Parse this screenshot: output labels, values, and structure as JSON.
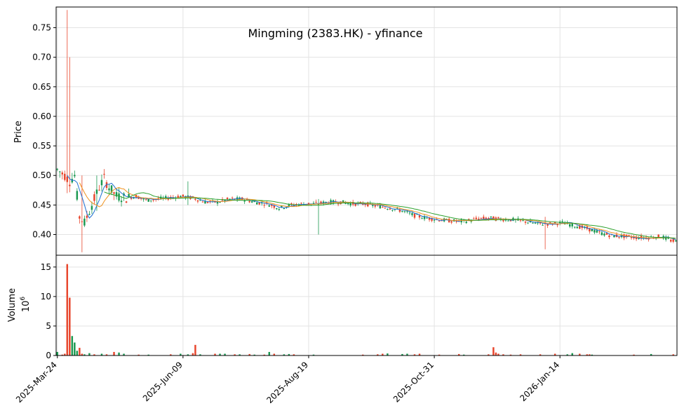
{
  "chart_data": {
    "type": "candlestick",
    "title": "Mingming (2383.HK) - yfinance",
    "price_panel": {
      "ylabel": "Price",
      "ylim": [
        0.365,
        0.785
      ],
      "yticks": [
        0.4,
        0.45,
        0.5,
        0.55,
        0.6,
        0.65,
        0.7,
        0.75
      ],
      "ytick_labels": [
        "0.40",
        "0.45",
        "0.50",
        "0.55",
        "0.60",
        "0.65",
        "0.70",
        "0.75"
      ]
    },
    "volume_panel": {
      "ylabel": "Volume",
      "exponent_label": "10",
      "exponent": "6",
      "ylim": [
        0,
        17
      ],
      "yticks": [
        0,
        5,
        10,
        15
      ],
      "ytick_labels": [
        "0",
        "5",
        "10",
        "15"
      ]
    },
    "x_ticks": [
      {
        "label": "2025-Mar-24",
        "index": 0
      },
      {
        "label": "2025-Jun-09",
        "index": 51
      },
      {
        "label": "2025-Aug-19",
        "index": 102
      },
      {
        "label": "2025-Oct-31",
        "index": 153
      },
      {
        "label": "2026-Jan-14",
        "index": 204
      }
    ],
    "n_sessions": 252,
    "colors": {
      "up": "#1a9850",
      "down": "#e8452c",
      "ma_short": "#1f6fd1",
      "ma_mid": "#f0921e",
      "ma_long": "#2ca02c"
    },
    "grid": true,
    "moving_averages": [
      "ma_short",
      "ma_mid",
      "ma_long"
    ],
    "price_anchors": [
      [
        0,
        0.51
      ],
      [
        3,
        0.5
      ],
      [
        5,
        0.49
      ],
      [
        7,
        0.5
      ],
      [
        9,
        0.43
      ],
      [
        11,
        0.42
      ],
      [
        13,
        0.44
      ],
      [
        15,
        0.46
      ],
      [
        17,
        0.48
      ],
      [
        19,
        0.495
      ],
      [
        21,
        0.48
      ],
      [
        24,
        0.465
      ],
      [
        28,
        0.462
      ],
      [
        32,
        0.465
      ],
      [
        36,
        0.458
      ],
      [
        40,
        0.46
      ],
      [
        45,
        0.462
      ],
      [
        50,
        0.465
      ],
      [
        55,
        0.462
      ],
      [
        60,
        0.455
      ],
      [
        65,
        0.455
      ],
      [
        70,
        0.46
      ],
      [
        75,
        0.46
      ],
      [
        80,
        0.455
      ],
      [
        85,
        0.452
      ],
      [
        90,
        0.445
      ],
      [
        95,
        0.45
      ],
      [
        100,
        0.452
      ],
      [
        105,
        0.452
      ],
      [
        110,
        0.455
      ],
      [
        115,
        0.455
      ],
      [
        120,
        0.452
      ],
      [
        125,
        0.452
      ],
      [
        130,
        0.448
      ],
      [
        135,
        0.445
      ],
      [
        140,
        0.44
      ],
      [
        145,
        0.432
      ],
      [
        150,
        0.428
      ],
      [
        155,
        0.425
      ],
      [
        160,
        0.423
      ],
      [
        165,
        0.422
      ],
      [
        170,
        0.426
      ],
      [
        175,
        0.428
      ],
      [
        180,
        0.426
      ],
      [
        185,
        0.425
      ],
      [
        190,
        0.422
      ],
      [
        195,
        0.418
      ],
      [
        200,
        0.418
      ],
      [
        205,
        0.42
      ],
      [
        210,
        0.415
      ],
      [
        215,
        0.41
      ],
      [
        220,
        0.403
      ],
      [
        225,
        0.398
      ],
      [
        230,
        0.397
      ],
      [
        235,
        0.395
      ],
      [
        240,
        0.395
      ],
      [
        245,
        0.397
      ],
      [
        249,
        0.39
      ],
      [
        251,
        0.388
      ]
    ],
    "price_spikes": [
      [
        4,
        0.78,
        0.47
      ],
      [
        5,
        0.7,
        0.48
      ],
      [
        10,
        0.5,
        0.37
      ],
      [
        16,
        0.5,
        0.44
      ],
      [
        53,
        0.49,
        0.45
      ],
      [
        106,
        0.46,
        0.4
      ],
      [
        198,
        0.43,
        0.375
      ]
    ],
    "volume_values": [
      [
        0,
        0.6
      ],
      [
        2,
        0.15
      ],
      [
        3,
        0.3
      ],
      [
        4,
        15.5
      ],
      [
        5,
        9.8
      ],
      [
        6,
        3.3
      ],
      [
        7,
        2.2
      ],
      [
        8,
        0.8
      ],
      [
        9,
        1.3
      ],
      [
        10,
        0.3
      ],
      [
        11,
        0.2
      ],
      [
        13,
        0.4
      ],
      [
        15,
        0.2
      ],
      [
        18,
        0.3
      ],
      [
        20,
        0.2
      ],
      [
        23,
        0.6
      ],
      [
        25,
        0.5
      ],
      [
        27,
        0.3
      ],
      [
        33,
        0.15
      ],
      [
        37,
        0.15
      ],
      [
        46,
        0.2
      ],
      [
        50,
        0.3
      ],
      [
        53,
        0.2
      ],
      [
        55,
        0.4
      ],
      [
        56,
        1.8
      ],
      [
        58,
        0.2
      ],
      [
        64,
        0.3
      ],
      [
        66,
        0.3
      ],
      [
        68,
        0.3
      ],
      [
        72,
        0.2
      ],
      [
        74,
        0.2
      ],
      [
        78,
        0.25
      ],
      [
        80,
        0.15
      ],
      [
        84,
        0.15
      ],
      [
        86,
        0.6
      ],
      [
        88,
        0.3
      ],
      [
        92,
        0.2
      ],
      [
        94,
        0.25
      ],
      [
        96,
        0.2
      ],
      [
        104,
        0.15
      ],
      [
        124,
        0.15
      ],
      [
        130,
        0.2
      ],
      [
        132,
        0.3
      ],
      [
        134,
        0.35
      ],
      [
        140,
        0.25
      ],
      [
        142,
        0.3
      ],
      [
        145,
        0.2
      ],
      [
        147,
        0.3
      ],
      [
        155,
        0.15
      ],
      [
        163,
        0.25
      ],
      [
        165,
        0.15
      ],
      [
        175,
        0.2
      ],
      [
        177,
        1.4
      ],
      [
        178,
        0.5
      ],
      [
        179,
        0.3
      ],
      [
        181,
        0.2
      ],
      [
        184,
        0.15
      ],
      [
        188,
        0.2
      ],
      [
        196,
        0.2
      ],
      [
        202,
        0.3
      ],
      [
        207,
        0.2
      ],
      [
        209,
        0.4
      ],
      [
        212,
        0.3
      ],
      [
        215,
        0.2
      ],
      [
        216,
        0.2
      ],
      [
        217,
        0.15
      ],
      [
        234,
        0.15
      ],
      [
        241,
        0.25
      ],
      [
        250,
        0.2
      ]
    ]
  }
}
